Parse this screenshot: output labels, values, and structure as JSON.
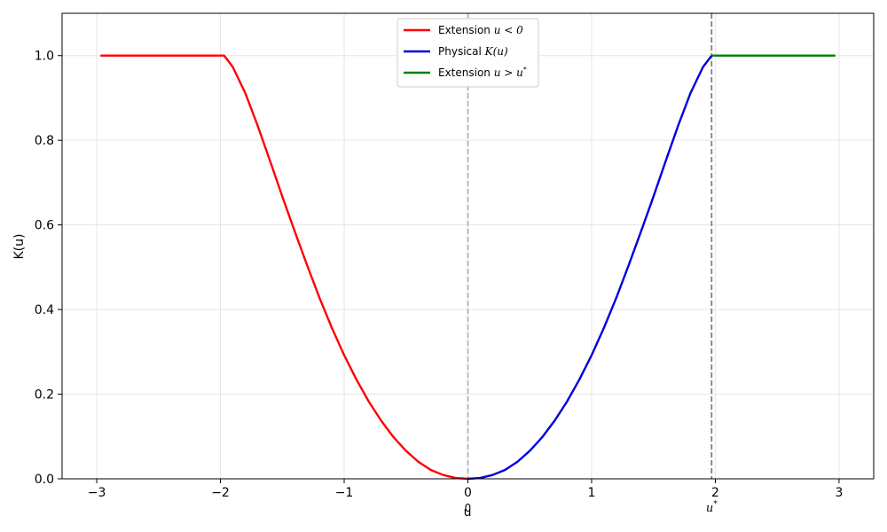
{
  "chart_data": {
    "type": "line",
    "title": "",
    "xlabel": "u",
    "ylabel": "K(u)",
    "xlim": [
      -3.28,
      3.28
    ],
    "ylim": [
      0.0,
      1.1
    ],
    "grid": true,
    "legend_position": "top-center",
    "x_ticks": [
      -3,
      -2,
      -1,
      0,
      1,
      2,
      3
    ],
    "x_tick_labels": [
      "−3",
      "−2",
      "−1",
      "0",
      "1",
      "2",
      "3"
    ],
    "y_ticks": [
      0.0,
      0.2,
      0.4,
      0.6,
      0.8,
      1.0
    ],
    "y_tick_labels": [
      "0.0",
      "0.2",
      "0.4",
      "0.6",
      "0.8",
      "1.0"
    ],
    "vlines": [
      {
        "x": 0,
        "color": "#b3b3b3",
        "style": "dashed",
        "label": "0"
      },
      {
        "x": 1.97,
        "color": "#7f7f7f",
        "style": "dashed",
        "label": "u*"
      }
    ],
    "series": [
      {
        "name": "Extension u < 0",
        "color": "#ff0000",
        "points": [
          [
            -2.97,
            1.0
          ],
          [
            -1.97,
            1.0
          ],
          [
            -1.9,
            0.973
          ],
          [
            -1.8,
            0.912
          ],
          [
            -1.7,
            0.835
          ],
          [
            -1.6,
            0.752
          ],
          [
            -1.5,
            0.667
          ],
          [
            -1.4,
            0.585
          ],
          [
            -1.3,
            0.505
          ],
          [
            -1.2,
            0.428
          ],
          [
            -1.1,
            0.357
          ],
          [
            -1.0,
            0.292
          ],
          [
            -0.9,
            0.234
          ],
          [
            -0.8,
            0.182
          ],
          [
            -0.7,
            0.137
          ],
          [
            -0.6,
            0.098
          ],
          [
            -0.5,
            0.066
          ],
          [
            -0.4,
            0.04
          ],
          [
            -0.3,
            0.021
          ],
          [
            -0.2,
            0.009
          ],
          [
            -0.1,
            0.002
          ],
          [
            0.0,
            0.0
          ]
        ]
      },
      {
        "name": "Physical K(u)",
        "color": "#0000dd",
        "points": [
          [
            0.0,
            0.0
          ],
          [
            0.1,
            0.002
          ],
          [
            0.2,
            0.009
          ],
          [
            0.3,
            0.021
          ],
          [
            0.4,
            0.04
          ],
          [
            0.5,
            0.066
          ],
          [
            0.6,
            0.098
          ],
          [
            0.7,
            0.137
          ],
          [
            0.8,
            0.182
          ],
          [
            0.9,
            0.234
          ],
          [
            1.0,
            0.292
          ],
          [
            1.1,
            0.357
          ],
          [
            1.2,
            0.428
          ],
          [
            1.3,
            0.505
          ],
          [
            1.4,
            0.585
          ],
          [
            1.5,
            0.667
          ],
          [
            1.6,
            0.752
          ],
          [
            1.7,
            0.835
          ],
          [
            1.8,
            0.912
          ],
          [
            1.9,
            0.973
          ],
          [
            1.97,
            1.0
          ]
        ]
      },
      {
        "name": "Extension u > u*",
        "color": "#008000",
        "points": [
          [
            1.97,
            1.0
          ],
          [
            2.97,
            1.0
          ]
        ]
      }
    ]
  },
  "legend": [
    {
      "prefix": "Extension ",
      "math": "u < 0",
      "color": "#ff0000"
    },
    {
      "prefix": "Physical ",
      "math": "K(u)",
      "color": "#0000dd"
    },
    {
      "prefix": "Extension ",
      "math": "u > u*",
      "color": "#008000"
    }
  ]
}
